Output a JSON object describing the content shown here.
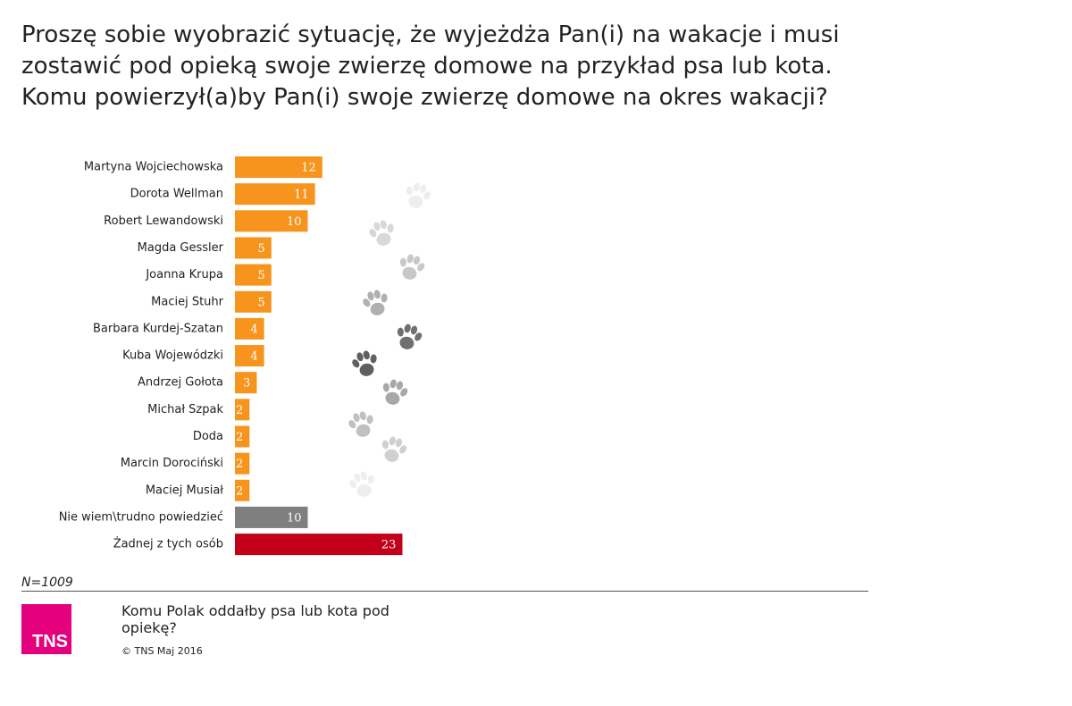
{
  "chart_data": {
    "type": "hbar",
    "title": "Proszę sobie wyobrazić sytuację, że wyjeżdża Pan(i) na wakacje i musi zostawić pod opieką swoje zwierzę domowe na przykład psa lub kota. Komu powierzył(a)by Pan(i) swoje zwierzę domowe na okres wakacji?",
    "categories": [
      "Martyna Wojciechowska",
      "Dorota Wellman",
      "Robert Lewandowski",
      "Magda Gessler",
      "Joanna Krupa",
      "Maciej Stuhr",
      "Barbara Kurdej-Szatan",
      "Kuba Wojewódzki",
      "Andrzej Gołota",
      "Michał Szpak",
      "Doda",
      "Marcin Dorociński",
      "Maciej Musiał",
      "Nie wiem\\trudno powiedzieć",
      "Żadnej z tych osób"
    ],
    "values": [
      12,
      11,
      10,
      5,
      5,
      5,
      4,
      4,
      3,
      2,
      2,
      2,
      2,
      10,
      23
    ],
    "colors": [
      "#f7941d",
      "#f7941d",
      "#f7941d",
      "#f7941d",
      "#f7941d",
      "#f7941d",
      "#f7941d",
      "#f7941d",
      "#f7941d",
      "#f7941d",
      "#f7941d",
      "#f7941d",
      "#f7941d",
      "#7f7f7f",
      "#c3001a"
    ],
    "sample": "N=1009",
    "footer_title": "Komu Polak oddałby psa lub kota pod opiekę?",
    "source": "© TNS Maj 2016",
    "logo": "TNS"
  }
}
